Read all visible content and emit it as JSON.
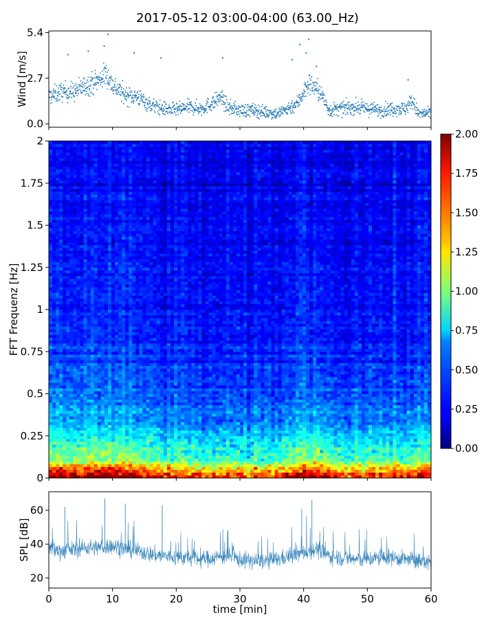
{
  "title": "2017-05-12 03:00-04:00 (63.00_Hz)",
  "colors": {
    "series": "#1f77b4",
    "colormap": "jet"
  },
  "chart_data": [
    {
      "type": "scatter",
      "name": "wind",
      "ylabel": "Wind [m/s]",
      "xlim": [
        0,
        60
      ],
      "ylim": [
        -0.2,
        5.5
      ],
      "yticks": [
        0.0,
        2.7,
        5.4
      ],
      "ytick_labels": [
        "0.0",
        "2.7",
        "5.4"
      ],
      "x": [
        0,
        2,
        4,
        6,
        8,
        9,
        10,
        12,
        14,
        16,
        18,
        20,
        22,
        24,
        26,
        27,
        28,
        30,
        32,
        34,
        36,
        37,
        38,
        39,
        40,
        41,
        42,
        43,
        44,
        46,
        48,
        50,
        52,
        54,
        56,
        57,
        58,
        60
      ],
      "y": [
        1.6,
        1.9,
        1.9,
        2.3,
        2.6,
        3.0,
        2.3,
        1.7,
        1.6,
        1.1,
        0.9,
        0.8,
        1.0,
        0.9,
        1.3,
        1.6,
        1.0,
        0.8,
        0.8,
        0.7,
        0.6,
        0.8,
        1.0,
        1.2,
        1.9,
        2.4,
        2.1,
        1.6,
        0.8,
        0.9,
        1.0,
        0.9,
        0.8,
        0.9,
        0.9,
        1.4,
        0.6,
        0.6
      ],
      "highlights": [
        {
          "x": 9.3,
          "y": 5.3
        },
        {
          "x": 8.7,
          "y": 4.6
        },
        {
          "x": 6.2,
          "y": 4.3
        },
        {
          "x": 3.0,
          "y": 4.1
        },
        {
          "x": 13.4,
          "y": 4.2
        },
        {
          "x": 17.6,
          "y": 3.9
        },
        {
          "x": 27.3,
          "y": 3.9
        },
        {
          "x": 38.2,
          "y": 3.8
        },
        {
          "x": 39.4,
          "y": 4.7
        },
        {
          "x": 40.4,
          "y": 4.2
        },
        {
          "x": 40.8,
          "y": 5.0
        },
        {
          "x": 42.0,
          "y": 3.4
        },
        {
          "x": 56.4,
          "y": 2.6
        }
      ]
    },
    {
      "type": "heatmap",
      "name": "spectrogram",
      "ylabel": "FFT Frequenz [Hz]",
      "xlim": [
        0,
        60
      ],
      "ylim": [
        0,
        2
      ],
      "yticks": [
        0,
        0.25,
        0.5,
        0.75,
        1,
        1.25,
        1.5,
        1.75,
        2
      ],
      "ytick_labels": [
        "0",
        "0.25",
        "0.5",
        "0.75",
        "1",
        "1.25",
        "1.5",
        "1.75",
        "2"
      ],
      "colorbar": {
        "vmin": 0.0,
        "vmax": 2.0,
        "ticks": [
          0.0,
          0.25,
          0.5,
          0.75,
          1.0,
          1.25,
          1.5,
          1.75,
          2.0
        ],
        "tick_labels": [
          "0.00",
          "0.25",
          "0.50",
          "0.75",
          "1.00",
          "1.25",
          "1.50",
          "1.75",
          "2.00"
        ]
      },
      "frequency_profile": {
        "frequency": [
          0.0,
          0.05,
          0.1,
          0.2,
          0.3,
          0.45,
          0.6,
          0.8,
          1.0,
          1.5,
          2.0
        ],
        "level": [
          1.8,
          1.4,
          0.95,
          0.75,
          0.55,
          0.45,
          0.38,
          0.32,
          0.28,
          0.25,
          0.22
        ]
      },
      "activity_profile": {
        "time": [
          0,
          5,
          10,
          15,
          20,
          25,
          30,
          35,
          40,
          42,
          45,
          50,
          55,
          60
        ],
        "level": [
          1.2,
          1.15,
          1.2,
          1.05,
          1.0,
          0.95,
          0.9,
          0.95,
          1.15,
          1.2,
          1.0,
          1.0,
          1.0,
          1.05
        ]
      }
    },
    {
      "type": "line",
      "name": "spl",
      "xlabel": "time [min]",
      "ylabel": "SPL [dB]",
      "xlim": [
        0,
        60
      ],
      "ylim": [
        14,
        71
      ],
      "xticks": [
        0,
        10,
        20,
        30,
        40,
        50,
        60
      ],
      "xtick_labels": [
        "0",
        "10",
        "20",
        "30",
        "40",
        "50",
        "60"
      ],
      "yticks": [
        20,
        40,
        60
      ],
      "ytick_labels": [
        "20",
        "40",
        "60"
      ],
      "x": [
        0,
        2,
        4,
        6,
        8,
        10,
        12,
        14,
        16,
        18,
        20,
        22,
        24,
        26,
        28,
        30,
        32,
        34,
        36,
        38,
        40,
        42,
        44,
        46,
        48,
        50,
        52,
        54,
        56,
        58,
        60
      ],
      "y": [
        37,
        36,
        37,
        38,
        38,
        39,
        37,
        36,
        34,
        33,
        32,
        32,
        31,
        32,
        33,
        31,
        30,
        30,
        31,
        33,
        35,
        37,
        33,
        32,
        31,
        31,
        32,
        32,
        31,
        30,
        29
      ],
      "peaks": [
        {
          "x": 2.5,
          "y": 62
        },
        {
          "x": 8.8,
          "y": 67
        },
        {
          "x": 12.0,
          "y": 64
        },
        {
          "x": 17.8,
          "y": 63
        },
        {
          "x": 39.7,
          "y": 61
        },
        {
          "x": 41.3,
          "y": 66
        }
      ]
    }
  ]
}
